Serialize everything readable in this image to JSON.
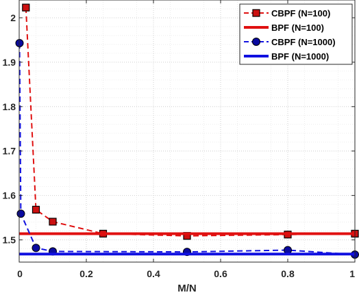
{
  "chart_data": {
    "type": "line",
    "xlabel": "M/N",
    "ylabel": "",
    "xlim": [
      0,
      1
    ],
    "ylim": [
      1.45,
      2.04
    ],
    "xticks": [
      "0",
      "0.2",
      "0.4",
      "0.6",
      "0.8",
      "1"
    ],
    "yticks": [
      "1.5",
      "1.6",
      "1.7",
      "1.8",
      "1.9",
      "2"
    ],
    "grid": "dotted",
    "legend_position": "top-right",
    "series": [
      {
        "name": "CBPF (N=100)",
        "style": "dashed-square",
        "color": "#e01010",
        "fill": "#cc1111",
        "x": [
          0.02,
          0.05,
          0.1,
          0.25,
          0.5,
          0.8,
          1.0
        ],
        "y": [
          2.023,
          1.568,
          1.541,
          1.514,
          1.509,
          1.512,
          1.514
        ]
      },
      {
        "name": "BPF (N=100)",
        "style": "solid",
        "color": "#e01010",
        "x": [
          0,
          1
        ],
        "y": [
          1.514,
          1.514
        ]
      },
      {
        "name": "CBPF (N=1000)",
        "style": "dashed-circle",
        "color": "#1010e0",
        "fill": "#0a0aa0",
        "x": [
          0.001,
          0.005,
          0.05,
          0.1,
          0.5,
          0.8,
          1.0
        ],
        "y": [
          1.943,
          1.559,
          1.482,
          1.474,
          1.473,
          1.477,
          1.467
        ]
      },
      {
        "name": "BPF (N=1000)",
        "style": "solid",
        "color": "#1010e0",
        "x": [
          0,
          1
        ],
        "y": [
          1.468,
          1.468
        ]
      }
    ]
  }
}
